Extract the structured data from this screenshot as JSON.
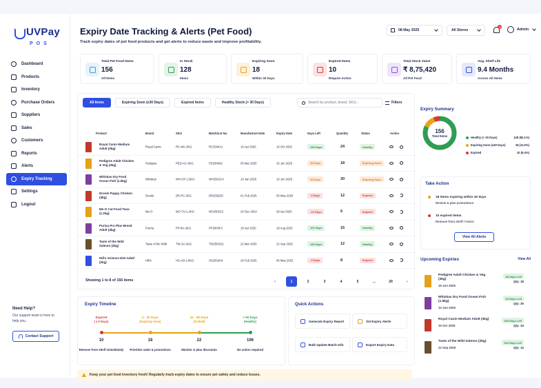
{
  "brand": {
    "name": "UVPay",
    "sub": "POS"
  },
  "sidebar": {
    "items": [
      {
        "label": "Dashboard",
        "icon": "home-icon"
      },
      {
        "label": "Products",
        "icon": "grid-icon"
      },
      {
        "label": "Inventory",
        "icon": "grid-icon"
      },
      {
        "label": "Purchase Orders",
        "icon": "cart-icon"
      },
      {
        "label": "Suppliers",
        "icon": "truck-icon"
      },
      {
        "label": "Sales",
        "icon": "user-icon"
      },
      {
        "label": "Customers",
        "icon": "users-icon"
      },
      {
        "label": "Reports",
        "icon": "chart-icon"
      },
      {
        "label": "Alerts",
        "icon": "bell-icon"
      },
      {
        "label": "Expiry Tracking",
        "icon": "calendar-icon",
        "active": true
      },
      {
        "label": "Settings",
        "icon": "gear-icon"
      },
      {
        "label": "Logout",
        "icon": "logout-icon"
      }
    ],
    "help": {
      "title": "Need Help?",
      "text": "Our support team is here to help you.",
      "button": "Contact Support"
    }
  },
  "header": {
    "title": "Expiry Date Tracking & Alerts (Pet Food)",
    "subtitle": "Track expiry dates of pet food products and get alerts to reduce waste and improve profitability.",
    "date": "08 May 2025",
    "store": "All Stores",
    "notifications": "3",
    "user": "Admin"
  },
  "stats": [
    {
      "label": "Total Pet Food Items",
      "value": "156",
      "sub": "All Items",
      "color": "#3a9bd8",
      "bg": "#e6f3fb"
    },
    {
      "label": "In Stock",
      "value": "128",
      "sub": "Items",
      "color": "#2e9d52",
      "bg": "#e3f4e8"
    },
    {
      "label": "Expiring Soon",
      "value": "18",
      "sub": "Within 30 Days",
      "color": "#e8a21a",
      "bg": "#fdf1dd"
    },
    {
      "label": "Expired Items",
      "value": "10",
      "sub": "Require Action",
      "color": "#d23a35",
      "bg": "#fbe3e2"
    },
    {
      "label": "Total Stock Value",
      "value": "₹ 8,75,420",
      "sub": "All Pet Food",
      "color": "#8a4fd8",
      "bg": "#efe5fb"
    },
    {
      "label": "Avg. Shelf Life",
      "value": "9.4 Months",
      "sub": "Across All Items",
      "color": "#2f4fe0",
      "bg": "#e4e9fb"
    }
  ],
  "table": {
    "tabs": [
      "All Items",
      "Expiring Soon (≤30 Days)",
      "Expired Items",
      "Healthy Stock (> 30 Days)"
    ],
    "search_placeholder": "Search by product, brand, SKU...",
    "filters_label": "Filters",
    "columns": [
      "Product",
      "Brand",
      "SKU",
      "Batch/Lot No.",
      "Manufacture Date",
      "Expiry Date",
      "Days Left",
      "Quantity",
      "Status",
      "Action"
    ],
    "rows": [
      {
        "product": "Royal Canin Medium Adult (3kg)",
        "brand": "Royal Canin",
        "sku": "RC-MA-3KG",
        "batch": "RC2504A1",
        "mfg": "10 Apr 2025",
        "expiry": "10 Oct 2025",
        "days": "155 Days",
        "qty": "24",
        "status": "Healthy",
        "tone": "green",
        "img": "#c0392b"
      },
      {
        "product": "Pedigree Adult Chicken & Veg (3kg)",
        "brand": "Pedigree",
        "sku": "PED-AC-3KG",
        "batch": "PD250402",
        "mfg": "05 Mar 2025",
        "expiry": "15 Jun 2025",
        "days": "38 Days",
        "qty": "18",
        "status": "Expiring Soon",
        "tone": "orange",
        "img": "#e3a21a"
      },
      {
        "product": "Whiskas Dry Food Ocean Fish (1.5kg)",
        "brand": "Whiskas",
        "sku": "WH-OF-1.5KG",
        "batch": "WH2501C4",
        "mfg": "10 Jan 2025",
        "expiry": "10 Jun 2025",
        "days": "33 Days",
        "qty": "30",
        "status": "Expiring Soon",
        "tone": "orange",
        "img": "#7b3fa0"
      },
      {
        "product": "Drools Puppy Chicken (3kg)",
        "brand": "Drools",
        "sku": "DR-PC-3KG",
        "batch": "DR2502D5",
        "mfg": "01 Feb 2025",
        "expiry": "05 May 2025",
        "days": "-3 Days",
        "qty": "12",
        "status": "Expired",
        "tone": "red",
        "img": "#c0392b"
      },
      {
        "product": "Me-O Cat Food Tuna (1.2kg)",
        "brand": "Me-O",
        "sku": "MO-TU-1.2KG",
        "batch": "MO2501E2",
        "mfg": "20 Dec 2024",
        "expiry": "28 Apr 2025",
        "days": "-10 Days",
        "qty": "6",
        "status": "Expired",
        "tone": "red",
        "img": "#e3a21a"
      },
      {
        "product": "Purina Pro Plan Breed Adult (3kg)",
        "brand": "Purina",
        "sku": "PP-BA-3KG",
        "batch": "PP2504F3",
        "mfg": "18 Apr 2025",
        "expiry": "18 Aug 2025",
        "days": "101 Days",
        "qty": "15",
        "status": "Healthy",
        "tone": "green",
        "img": "#7b3fa0"
      },
      {
        "product": "Taste of the Wild Salmon (2kg)",
        "brand": "Taste of the Wild",
        "sku": "TW-SA-2KG",
        "batch": "TW2503G2",
        "mfg": "22 Mar 2025",
        "expiry": "22 Sep 2025",
        "days": "136 Days",
        "qty": "12",
        "status": "Healthy",
        "tone": "green",
        "img": "#6b4e2e"
      },
      {
        "product": "Hill's Science Diet Adult (2kg)",
        "brand": "Hill's",
        "sku": "HS-AD-2.5KG",
        "batch": "HS2502H4",
        "mfg": "28 Feb 2025",
        "expiry": "05 May 2025",
        "days": "-3 Days",
        "qty": "8",
        "status": "Expired",
        "tone": "red",
        "img": "#2f4fe0"
      }
    ],
    "showing": "Showing 1 to 8 of 156 items",
    "pages": [
      "‹",
      "1",
      "2",
      "3",
      "4",
      "5",
      "...",
      "20",
      "›"
    ]
  },
  "summary": {
    "title": "Expiry Summary",
    "total": "156",
    "total_label": "Total Items",
    "legend": [
      {
        "name": "Healthy (> 30 Days)",
        "value": "128 (82.1%)",
        "color": "#2e9d52"
      },
      {
        "name": "Expiring Soon (≤30 Days)",
        "value": "18 (11.5%)",
        "color": "#e8a21a"
      },
      {
        "name": "Expired",
        "value": "10 (6.4%)",
        "color": "#d23a35"
      }
    ],
    "slices": [
      128,
      18,
      10
    ]
  },
  "take_action": {
    "title": "Take Action",
    "items": [
      {
        "main": "18 items expiring within 30 days",
        "sub": "Review & plan promotions",
        "color": "#e8a21a"
      },
      {
        "main": "10 expired items",
        "sub": "Remove from shelf / return",
        "color": "#d23a35"
      }
    ],
    "button": "View All Alerts"
  },
  "upcoming": {
    "title": "Upcoming Expiries",
    "view_all": "View All",
    "items": [
      {
        "name": "Pedigree Adult Chicken & Veg (3kg)",
        "date": "15 Jun 2025",
        "left": "38 Days Left",
        "qty": "Qty: 18",
        "img": "#e3a21a"
      },
      {
        "name": "Whiskas Dry Food Ocean Fish (1.5kg)",
        "date": "10 Jun 2025",
        "left": "33 Days Left",
        "qty": "Qty: 30",
        "img": "#7b3fa0"
      },
      {
        "name": "Royal Canin Medium Adult (3kg)",
        "date": "10 Oct 2025",
        "left": "155 Days Left",
        "qty": "Qty: 24",
        "img": "#c0392b"
      },
      {
        "name": "Taste of the Wild Salmon (2kg)",
        "date": "22 Sep 2025",
        "left": "136 Days Left",
        "qty": "Qty: 12",
        "img": "#6b4e2e"
      }
    ]
  },
  "timeline": {
    "title": "Expiry Timeline",
    "stages": [
      {
        "head": "Expired",
        "sub": "( ≤ 0 Days)",
        "count": "10",
        "note": "Remove from shelf immediately",
        "color": "#d23a35"
      },
      {
        "head": "0 - 30 Days",
        "sub": "(Expiring Soon)",
        "count": "18",
        "note": "Prioritize sales & promotions",
        "color": "#e8a21a"
      },
      {
        "head": "31 - 90 Days",
        "sub": "(At Risk)",
        "count": "22",
        "note": "Monitor & plan discounts",
        "color": "#e0a400"
      },
      {
        "head": "> 90 Days",
        "sub": "(Healthy)",
        "count": "106",
        "note": "No action required",
        "color": "#2e9d52"
      }
    ]
  },
  "quick_actions": {
    "title": "Quick Actions",
    "buttons": [
      {
        "label": "Generate Expiry Report",
        "color": "#2f4fe0"
      },
      {
        "label": "Set Expiry Alerts",
        "color": "#e8a21a"
      },
      {
        "label": "Bulk Update Batch Info",
        "color": "#2f4fe0"
      },
      {
        "label": "Export Expiry Data",
        "color": "#2f4fe0"
      }
    ]
  },
  "footer": {
    "note": "Keep your pet food inventory fresh! Regularly track expiry dates to ensure pet safety and reduce losses."
  }
}
